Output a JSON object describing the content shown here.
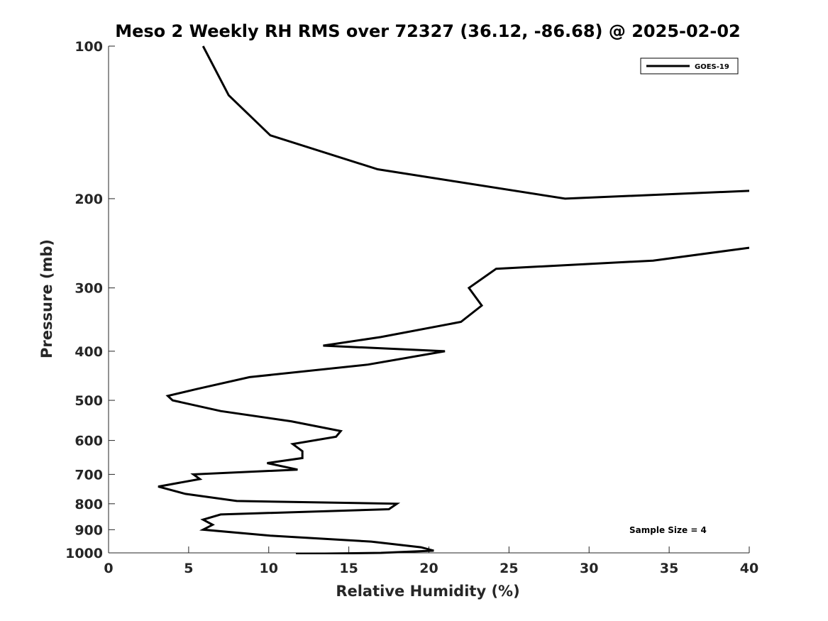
{
  "chart_data": {
    "type": "line",
    "title": "Meso 2 Weekly RH RMS over 72327 (36.12, -86.68) @ 2025-02-02",
    "xlabel": "Relative Humidity (%)",
    "ylabel": "Pressure (mb)",
    "xlim": [
      0,
      40
    ],
    "ylim": [
      100,
      1000
    ],
    "yscale": "log",
    "y_reversed": true,
    "xticks": [
      0,
      5,
      10,
      15,
      20,
      25,
      30,
      35,
      40
    ],
    "yticks": [
      100,
      200,
      300,
      400,
      500,
      600,
      700,
      800,
      900,
      1000
    ],
    "grid": false,
    "legend_position": "top-right",
    "series": [
      {
        "name": "GOES-19",
        "color": "#000000",
        "segments": [
          [
            [
              5.9,
              100
            ],
            [
              7.5,
              125
            ],
            [
              10.1,
              150
            ],
            [
              16.8,
              175
            ],
            [
              28.5,
              200
            ],
            [
              40.0,
              193
            ]
          ],
          [
            [
              40.0,
              250
            ],
            [
              34.0,
              265
            ],
            [
              24.2,
              275
            ],
            [
              22.5,
              300
            ],
            [
              23.3,
              325
            ],
            [
              22.0,
              350
            ],
            [
              17.0,
              375
            ],
            [
              13.4,
              390
            ],
            [
              21.0,
              400
            ],
            [
              16.2,
              425
            ],
            [
              8.8,
              450
            ],
            [
              5.5,
              475
            ],
            [
              3.7,
              490
            ],
            [
              4.0,
              500
            ],
            [
              7.0,
              525
            ],
            [
              11.4,
              550
            ],
            [
              14.5,
              575
            ],
            [
              14.2,
              590
            ],
            [
              11.5,
              610
            ],
            [
              12.1,
              630
            ],
            [
              12.1,
              650
            ],
            [
              9.9,
              665
            ],
            [
              11.8,
              685
            ],
            [
              5.3,
              700
            ],
            [
              5.7,
              715
            ],
            [
              3.1,
              740
            ],
            [
              4.8,
              765
            ],
            [
              8.0,
              790
            ],
            [
              18.0,
              800
            ],
            [
              17.5,
              820
            ],
            [
              7.0,
              840
            ],
            [
              5.9,
              860
            ],
            [
              6.5,
              880
            ],
            [
              5.9,
              900
            ],
            [
              10.1,
              925
            ],
            [
              16.4,
              950
            ],
            [
              19.5,
              975
            ],
            [
              20.3,
              990
            ],
            [
              17.0,
              1000
            ],
            [
              11.7,
              1005
            ]
          ]
        ]
      }
    ],
    "legend": [
      {
        "label": "GOES-19"
      }
    ],
    "annotations": [
      {
        "text": "Sample Size = 4"
      }
    ]
  }
}
